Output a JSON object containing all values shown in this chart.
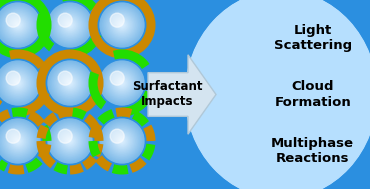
{
  "bg_color": "#2b8fe0",
  "right_bg_gradient": "#b8e0ff",
  "sphere_inner": "#ddf0ff",
  "sphere_outer": "#7ab8e8",
  "green": "#22dd00",
  "orange": "#cc8800",
  "arrow_color": "#d4e4f0",
  "arrow_edge": "#b0c8d8",
  "surfactant_text": "Surfactant\nImpacts",
  "labels": [
    "Light\nScattering",
    "Cloud\nFormation",
    "Multiphase\nReactions"
  ],
  "label_fontsize": 9.5,
  "title_fontsize": 8.5,
  "fig_w": 3.7,
  "fig_h": 1.89,
  "dpi": 100
}
